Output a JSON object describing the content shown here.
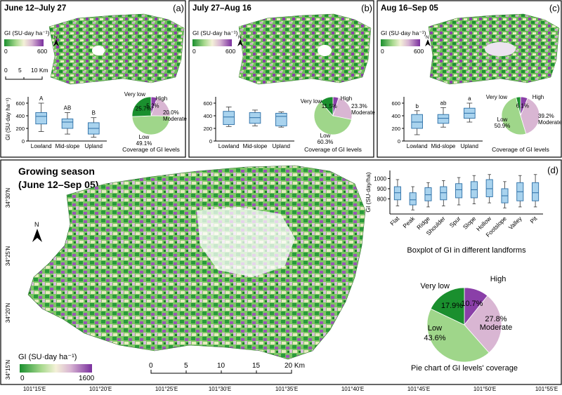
{
  "panels": {
    "a": {
      "title": "June 12–July 27",
      "letter": "(a)",
      "legend_title": "GI (SU·day ha⁻¹)",
      "legend_min": "0",
      "legend_max": "600",
      "scale_ticks": [
        "0",
        "5",
        "10 Km"
      ]
    },
    "b": {
      "title": "July 27–Aug 16",
      "letter": "(b)",
      "legend_title": "GI (SU·day ha⁻¹)",
      "legend_min": "0",
      "legend_max": "600"
    },
    "c": {
      "title": "Aug 16–Sep 05",
      "letter": "(c)",
      "legend_title": "GI (SU·day ha⁻¹)",
      "legend_min": "0",
      "legend_max": "600"
    },
    "main": {
      "title_line1": "Growing season",
      "title_line2": "(June 12–Sep 05)",
      "letter": "(d)",
      "legend_title": "GI (SU·day ha⁻¹)",
      "legend_min": "0",
      "legend_max": "1600",
      "scale_ticks": [
        "0",
        "5",
        "10",
        "15",
        "20 Km"
      ],
      "lat_labels": [
        "34°30'N",
        "34°25'N",
        "34°20'N",
        "34°15'N"
      ],
      "lon_labels": [
        "101°15'E",
        "101°20'E",
        "101°25'E",
        "101°30'E",
        "101°35'E",
        "101°40'E",
        "101°45'E",
        "101°50'E",
        "101°55'E"
      ]
    }
  },
  "north_label": "N",
  "colors": {
    "very_low": "#1a8f2e",
    "low": "#9fd68a",
    "moderate": "#d9b6d3",
    "high": "#8a3fa8",
    "box_fill": "#a9d3ee",
    "box_stroke": "#2b6ea6"
  },
  "chart_data": [
    {
      "type": "box",
      "panel": "a",
      "categories": [
        "Lowland",
        "Mid-slope",
        "Upland"
      ],
      "ylabel": "GI (SU·day ha⁻¹)",
      "ylim": [
        0,
        700
      ],
      "yticks": [
        "0",
        "200",
        "400",
        "600"
      ],
      "letters": [
        "A",
        "AB",
        "B"
      ],
      "boxes": [
        {
          "whisker_low": 150,
          "q1": 270,
          "median": 390,
          "q3": 450,
          "whisker_high": 600
        },
        {
          "whisker_low": 110,
          "q1": 200,
          "median": 300,
          "q3": 350,
          "whisker_high": 450
        },
        {
          "whisker_low": 60,
          "q1": 110,
          "median": 200,
          "q3": 290,
          "whisker_high": 370
        }
      ]
    },
    {
      "type": "box",
      "panel": "b",
      "categories": [
        "Lowland",
        "Mid-slope",
        "Upland"
      ],
      "ylabel": "",
      "ylim": [
        0,
        700
      ],
      "yticks": [
        "0",
        "200",
        "400",
        "600"
      ],
      "letters": [
        "",
        "",
        ""
      ],
      "boxes": [
        {
          "whisker_low": 230,
          "q1": 260,
          "median": 380,
          "q3": 470,
          "whisker_high": 540
        },
        {
          "whisker_low": 240,
          "q1": 280,
          "median": 370,
          "q3": 450,
          "whisker_high": 490
        },
        {
          "whisker_low": 220,
          "q1": 240,
          "median": 390,
          "q3": 440,
          "whisker_high": 460
        }
      ]
    },
    {
      "type": "box",
      "panel": "c",
      "categories": [
        "Lowland",
        "Mid-slope",
        "Upland"
      ],
      "ylabel": "",
      "ylim": [
        0,
        700
      ],
      "yticks": [
        "0",
        "200",
        "400",
        "600"
      ],
      "letters": [
        "b",
        "ab",
        "a"
      ],
      "boxes": [
        {
          "whisker_low": 100,
          "q1": 200,
          "median": 300,
          "q3": 420,
          "whisker_high": 480
        },
        {
          "whisker_low": 220,
          "q1": 280,
          "median": 360,
          "q3": 420,
          "whisker_high": 530
        },
        {
          "whisker_low": 300,
          "q1": 360,
          "median": 440,
          "q3": 520,
          "whisker_high": 600
        }
      ]
    },
    {
      "type": "box",
      "panel": "d",
      "title": "Boxplot of GI in different landforms",
      "categories": [
        "Flat",
        "Peak",
        "Ridge",
        "Shoulder",
        "Spur",
        "Slope",
        "Hollow",
        "Footslope",
        "Valley",
        "Pit"
      ],
      "ylabel": "GI (SU·day/ha)",
      "ylim": [
        650,
        1080
      ],
      "yticks": [
        "800",
        "900",
        "1000"
      ],
      "boxes": [
        {
          "whisker_low": 730,
          "q1": 790,
          "median": 860,
          "q3": 920,
          "whisker_high": 990
        },
        {
          "whisker_low": 690,
          "q1": 740,
          "median": 790,
          "q3": 860,
          "whisker_high": 920
        },
        {
          "whisker_low": 720,
          "q1": 780,
          "median": 840,
          "q3": 910,
          "whisker_high": 960
        },
        {
          "whisker_low": 730,
          "q1": 790,
          "median": 860,
          "q3": 920,
          "whisker_high": 980
        },
        {
          "whisker_low": 740,
          "q1": 810,
          "median": 890,
          "q3": 950,
          "whisker_high": 1010
        },
        {
          "whisker_low": 750,
          "q1": 810,
          "median": 890,
          "q3": 970,
          "whisker_high": 1030
        },
        {
          "whisker_low": 760,
          "q1": 820,
          "median": 900,
          "q3": 990,
          "whisker_high": 1040
        },
        {
          "whisker_low": 710,
          "q1": 760,
          "median": 830,
          "q3": 900,
          "whisker_high": 970
        },
        {
          "whisker_low": 720,
          "q1": 780,
          "median": 870,
          "q3": 960,
          "whisker_high": 1030
        },
        {
          "whisker_low": 720,
          "q1": 780,
          "median": 860,
          "q3": 960,
          "whisker_high": 1040
        }
      ]
    },
    {
      "type": "pie",
      "panel": "a",
      "title": "Coverage of GI levels",
      "labels": [
        "Very low",
        "Low",
        "Moderate",
        "High"
      ],
      "values": [
        25.7,
        49.1,
        20.0,
        5.2
      ],
      "value_labels": [
        "25.7%",
        "49.1%",
        "20.0%",
        "5.2%"
      ]
    },
    {
      "type": "pie",
      "panel": "b",
      "title": "Coverage of GI levels",
      "labels": [
        "Very low",
        "Low",
        "Moderate",
        "High"
      ],
      "values": [
        11.5,
        60.3,
        23.3,
        4.9
      ],
      "value_labels": [
        "11.5%",
        "60.3%",
        "23.3%",
        ""
      ]
    },
    {
      "type": "pie",
      "panel": "c",
      "title": "Coverage of GI levels",
      "labels": [
        "Very low",
        "Low",
        "Moderate",
        "High"
      ],
      "values": [
        3.8,
        50.9,
        39.2,
        6.1
      ],
      "value_labels": [
        "",
        "50.9%",
        "39.2%",
        "6.1%"
      ]
    },
    {
      "type": "pie",
      "panel": "d",
      "title": "Pie chart of GI levels' coverage",
      "labels": [
        "Very low",
        "Low",
        "Moderate",
        "High"
      ],
      "values": [
        17.9,
        43.6,
        27.8,
        10.7
      ],
      "value_labels": [
        "17.9%",
        "43.6%",
        "27.8%",
        "10.7%"
      ]
    }
  ]
}
